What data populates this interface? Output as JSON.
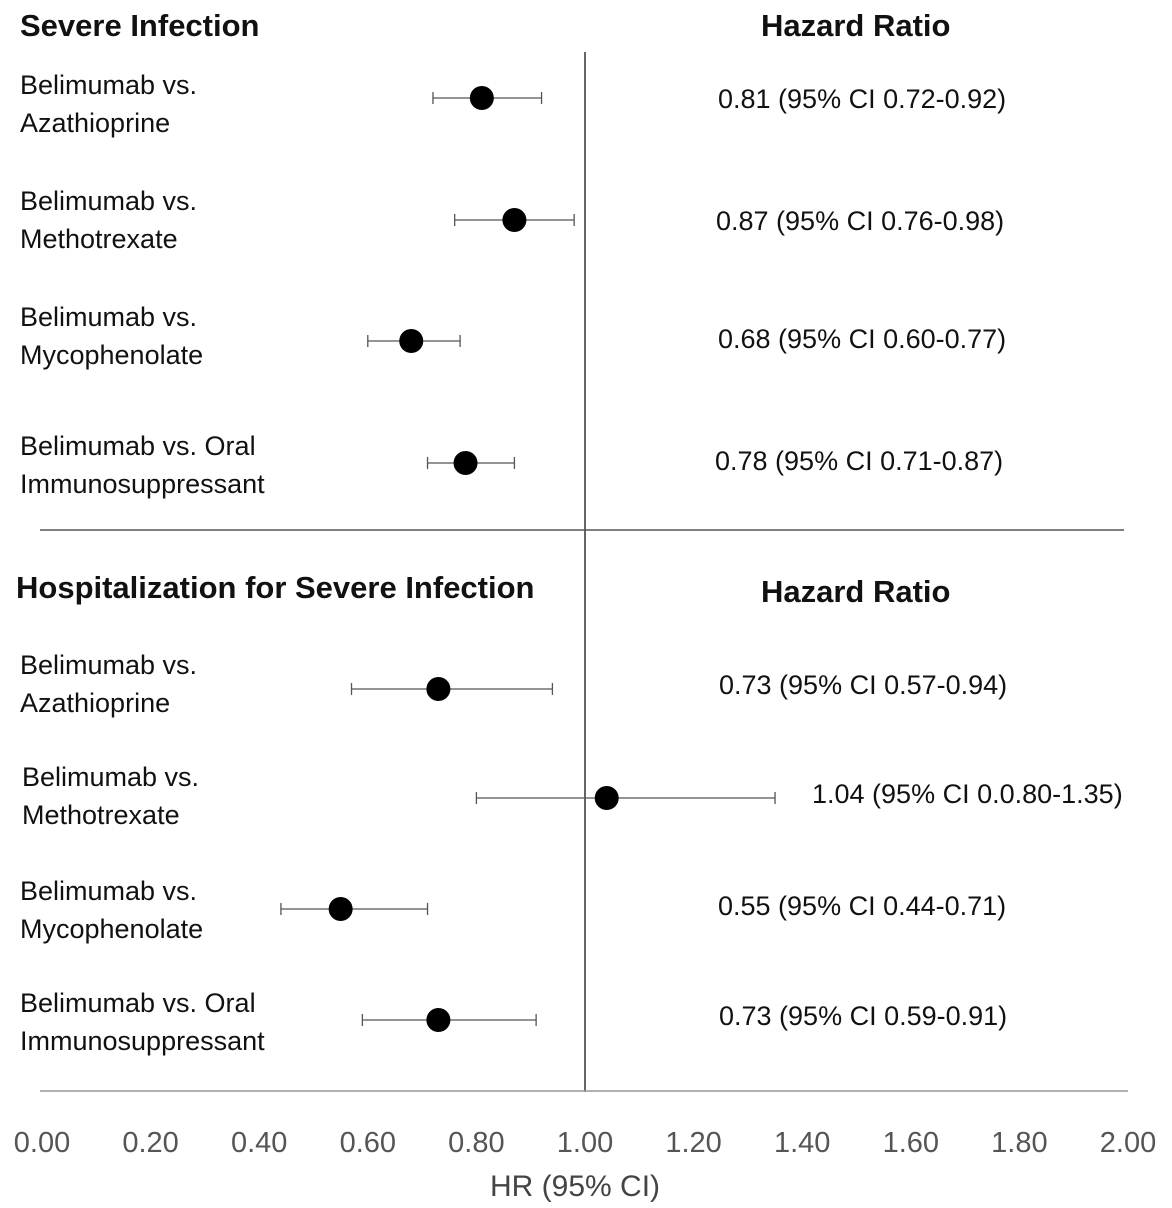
{
  "sections": [
    {
      "title": "Severe Infection",
      "hr_header": "Hazard Ratio",
      "rows": [
        {
          "label": "Belimumab vs.\nAzathioprine",
          "hr": 0.81,
          "lo": 0.72,
          "hi": 0.92,
          "text": "0.81 (95% CI 0.72-0.92)"
        },
        {
          "label": "Belimumab vs.\nMethotrexate",
          "hr": 0.87,
          "lo": 0.76,
          "hi": 0.98,
          "text": "0.87 (95% CI 0.76-0.98)"
        },
        {
          "label": "Belimumab vs.\nMycophenolate",
          "hr": 0.68,
          "lo": 0.6,
          "hi": 0.77,
          "text": "0.68 (95% CI 0.60-0.77)"
        },
        {
          "label": "Belimumab vs. Oral\nImmunosuppressant",
          "hr": 0.78,
          "lo": 0.71,
          "hi": 0.87,
          "text": "0.78 (95% CI 0.71-0.87)"
        }
      ]
    },
    {
      "title": "Hospitalization for Severe Infection",
      "hr_header": "Hazard Ratio",
      "rows": [
        {
          "label": "Belimumab vs.\nAzathioprine",
          "hr": 0.73,
          "lo": 0.57,
          "hi": 0.94,
          "text": "0.73 (95% CI 0.57-0.94)"
        },
        {
          "label": "Belimumab vs.\nMethotrexate",
          "hr": 1.04,
          "lo": 0.8,
          "hi": 1.35,
          "text": "1.04 (95% CI 0.0.80-1.35)"
        },
        {
          "label": "Belimumab vs.\nMycophenolate",
          "hr": 0.55,
          "lo": 0.44,
          "hi": 0.71,
          "text": "0.55 (95% CI 0.44-0.71)"
        },
        {
          "label": "Belimumab vs. Oral\nImmunosuppressant",
          "hr": 0.73,
          "lo": 0.59,
          "hi": 0.91,
          "text": "0.73 (95% CI 0.59-0.91)"
        }
      ]
    }
  ],
  "chart_data": {
    "type": "scatter",
    "subtype": "forest-plot",
    "xlabel": "HR (95% CI)",
    "xlim": [
      0.0,
      2.0
    ],
    "xticks": [
      "0.00",
      "0.20",
      "0.40",
      "0.60",
      "0.80",
      "1.00",
      "1.20",
      "1.40",
      "1.60",
      "1.80",
      "2.00"
    ],
    "reference_line": 1.0,
    "series": [
      {
        "name": "Severe Infection",
        "categories": [
          "Belimumab vs. Azathioprine",
          "Belimumab vs. Methotrexate",
          "Belimumab vs. Mycophenolate",
          "Belimumab vs. Oral Immunosuppressant"
        ],
        "values": [
          0.81,
          0.87,
          0.68,
          0.78
        ],
        "ci_low": [
          0.72,
          0.76,
          0.6,
          0.71
        ],
        "ci_high": [
          0.92,
          0.98,
          0.77,
          0.87
        ]
      },
      {
        "name": "Hospitalization for Severe Infection",
        "categories": [
          "Belimumab vs. Azathioprine",
          "Belimumab vs. Methotrexate",
          "Belimumab vs. Mycophenolate",
          "Belimumab vs. Oral Immunosuppressant"
        ],
        "values": [
          0.73,
          1.04,
          0.55,
          0.73
        ],
        "ci_low": [
          0.57,
          0.8,
          0.44,
          0.59
        ],
        "ci_high": [
          0.94,
          1.35,
          0.71,
          0.91
        ]
      }
    ],
    "grid": false
  },
  "style": {
    "marker_color": "#000000",
    "line_color": "#555555",
    "text_color": "#111111"
  }
}
